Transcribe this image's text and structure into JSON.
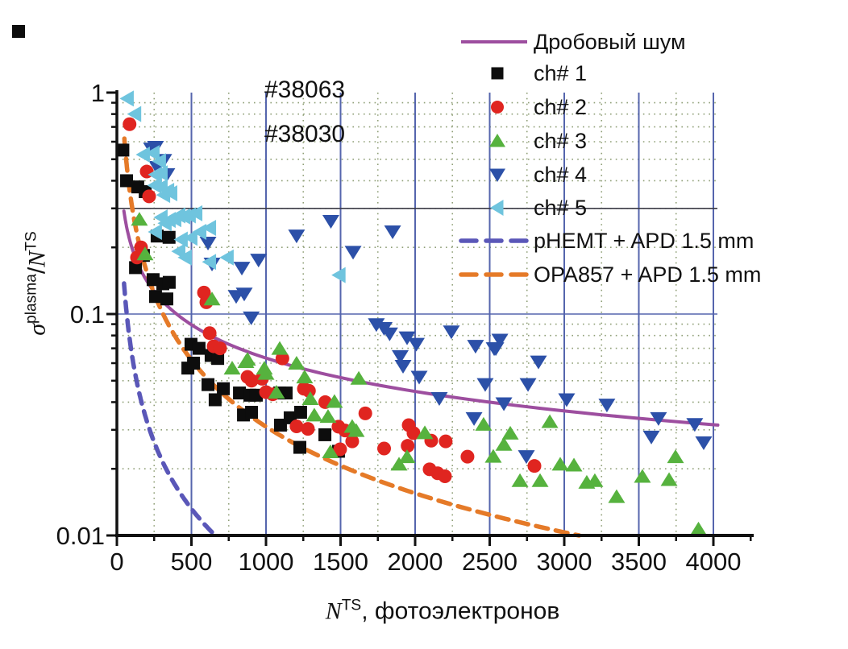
{
  "annotations": [
    "#38063",
    "#38030"
  ],
  "legend": {
    "items": [
      {
        "label": "Дробовый шум",
        "kind": "line",
        "color": "#9D4E9F"
      },
      {
        "label": "ch# 1",
        "kind": "square",
        "color": "#0d0d0d"
      },
      {
        "label": "ch# 2",
        "kind": "circle",
        "color": "#E02520"
      },
      {
        "label": "ch# 3",
        "kind": "triangle-up",
        "color": "#56B23E"
      },
      {
        "label": "ch# 4",
        "kind": "triangle-down",
        "color": "#2C50A8"
      },
      {
        "label": "ch# 5",
        "kind": "triangle-left",
        "color": "#6FC4DE"
      },
      {
        "label": "pHEMT + APD 1.5 mm",
        "kind": "dashed-line",
        "color": "#5A57B8"
      },
      {
        "label": "OPA857 + APD 1.5 mm",
        "kind": "dashed-line",
        "color": "#E57A28"
      }
    ]
  },
  "axes": {
    "x": {
      "title_n": "N",
      "title_sup": "TS",
      "title_rest": ", фотоэлектронов",
      "tick_labels": [
        "0",
        "500",
        "1000",
        "1500",
        "2000",
        "2500",
        "3000",
        "3500",
        "4000"
      ],
      "tick_values": [
        0,
        500,
        1000,
        1500,
        2000,
        2500,
        3000,
        3500,
        4000
      ],
      "minor_tick_values": [
        250,
        750,
        1250,
        1750,
        2250,
        2750,
        3250,
        3750,
        4250
      ],
      "range": [
        0,
        4270
      ],
      "scale": "linear"
    },
    "y": {
      "title_sigma": "σ",
      "title_sup1": "plasma",
      "title_slash": "/",
      "title_n": "N",
      "title_sup2": "TS",
      "tick_labels": [
        "1",
        "0.1",
        "0.01"
      ],
      "tick_values": [
        1,
        0.1,
        0.01
      ],
      "minor_tick_values": [
        0.9,
        0.8,
        0.7,
        0.6,
        0.5,
        0.4,
        0.3,
        0.2,
        0.09,
        0.08,
        0.07,
        0.06,
        0.05,
        0.04,
        0.03,
        0.02
      ],
      "range": [
        0.01,
        1
      ],
      "scale": "log"
    }
  },
  "colors": {
    "grid_major": "#5565AD",
    "grid_minor": "#8F9F77",
    "ref_line_03": "#3B3B47",
    "axis": "#111111"
  },
  "reference_lines": {
    "horizontal_solid_at": [
      0.3,
      0.1
    ]
  },
  "chart_data": {
    "type": "scatter",
    "x_axis": "N^TS, фотоэлектронов (0–4000, linear)",
    "y_axis": "σ^plasma/N^TS (0.01–1, log)",
    "grid": "major blue solid every 500 (x) and per decade (y); green dotted minors",
    "legend_position": "top-right, transparent",
    "series": [
      {
        "name": "ch# 1",
        "marker": "square",
        "color": "#0d0d0d",
        "points": [
          [
            40,
            0.55
          ],
          [
            65,
            0.4
          ],
          [
            140,
            0.375
          ],
          [
            190,
            0.357
          ],
          [
            270,
            0.225
          ],
          [
            350,
            0.222
          ],
          [
            125,
            0.162
          ],
          [
            178,
            0.184
          ],
          [
            243,
            0.143
          ],
          [
            308,
            0.137
          ],
          [
            351,
            0.139
          ],
          [
            259,
            0.12
          ],
          [
            335,
            0.117
          ],
          [
            476,
            0.057
          ],
          [
            497,
            0.073
          ],
          [
            514,
            0.06
          ],
          [
            551,
            0.07
          ],
          [
            611,
            0.048
          ],
          [
            632,
            0.065
          ],
          [
            659,
            0.041
          ],
          [
            676,
            0.063
          ],
          [
            714,
            0.046
          ],
          [
            822,
            0.044
          ],
          [
            849,
            0.035
          ],
          [
            892,
            0.043
          ],
          [
            903,
            0.036
          ],
          [
            935,
            0.043
          ],
          [
            1092,
            0.044
          ],
          [
            1097,
            0.0315
          ],
          [
            1135,
            0.044
          ],
          [
            1162,
            0.034
          ],
          [
            1227,
            0.025
          ],
          [
            1232,
            0.036
          ],
          [
            1395,
            0.0285
          ],
          [
            1486,
            0.024
          ]
        ]
      },
      {
        "name": "ch# 2",
        "marker": "circle",
        "color": "#E02520",
        "points": [
          [
            85,
            0.72
          ],
          [
            135,
            0.18
          ],
          [
            162,
            0.2
          ],
          [
            200,
            0.44
          ],
          [
            216,
            0.34
          ],
          [
            584,
            0.125
          ],
          [
            600,
            0.113
          ],
          [
            622,
            0.082
          ],
          [
            649,
            0.0715
          ],
          [
            692,
            0.07
          ],
          [
            876,
            0.052
          ],
          [
            903,
            0.05
          ],
          [
            973,
            0.051
          ],
          [
            1000,
            0.0444
          ],
          [
            1045,
            0.0434
          ],
          [
            1110,
            0.063
          ],
          [
            1254,
            0.046
          ],
          [
            1288,
            0.045
          ],
          [
            1205,
            0.0311
          ],
          [
            1281,
            0.0303
          ],
          [
            1397,
            0.04
          ],
          [
            1486,
            0.031
          ],
          [
            1530,
            0.0298
          ],
          [
            1578,
            0.0266
          ],
          [
            1497,
            0.0245
          ],
          [
            1666,
            0.0356
          ],
          [
            1792,
            0.0247
          ],
          [
            1957,
            0.0315
          ],
          [
            1989,
            0.029
          ],
          [
            1950,
            0.0254
          ],
          [
            2097,
            0.0199
          ],
          [
            2108,
            0.0268
          ],
          [
            2151,
            0.0191
          ],
          [
            2200,
            0.0185
          ],
          [
            2205,
            0.0266
          ],
          [
            2351,
            0.0227
          ],
          [
            2800,
            0.0206
          ]
        ]
      },
      {
        "name": "ch# 3",
        "marker": "triangle-up",
        "color": "#56B23E",
        "points": [
          [
            151,
            0.268
          ],
          [
            189,
            0.187
          ],
          [
            638,
            0.117
          ],
          [
            773,
            0.057
          ],
          [
            865,
            0.061
          ],
          [
            876,
            0.0625
          ],
          [
            989,
            0.057
          ],
          [
            1000,
            0.054
          ],
          [
            1070,
            0.0444
          ],
          [
            1092,
            0.07
          ],
          [
            1205,
            0.06
          ],
          [
            1259,
            0.052
          ],
          [
            1297,
            0.0415
          ],
          [
            1324,
            0.035
          ],
          [
            1416,
            0.0345
          ],
          [
            1432,
            0.0239
          ],
          [
            1459,
            0.0403
          ],
          [
            1578,
            0.0311
          ],
          [
            1622,
            0.0513
          ],
          [
            1605,
            0.0298
          ],
          [
            1892,
            0.021
          ],
          [
            1946,
            0.0227
          ],
          [
            2065,
            0.0291
          ],
          [
            2459,
            0.0318
          ],
          [
            2524,
            0.0228
          ],
          [
            2595,
            0.0258
          ],
          [
            2638,
            0.029
          ],
          [
            2703,
            0.0177
          ],
          [
            2838,
            0.0177
          ],
          [
            2903,
            0.0327
          ],
          [
            2973,
            0.021
          ],
          [
            3065,
            0.0208
          ],
          [
            3151,
            0.0174
          ],
          [
            3205,
            0.0177
          ],
          [
            3351,
            0.015
          ],
          [
            3524,
            0.0185
          ],
          [
            3703,
            0.0179
          ],
          [
            3746,
            0.0227
          ],
          [
            3900,
            0.0107
          ]
        ]
      },
      {
        "name": "ch# 4",
        "marker": "triangle-down",
        "color": "#2C50A8",
        "points": [
          [
            232,
            0.556
          ],
          [
            259,
            0.566
          ],
          [
            270,
            0.459
          ],
          [
            314,
            0.494
          ],
          [
            335,
            0.426
          ],
          [
            611,
            0.209
          ],
          [
            638,
            0.168
          ],
          [
            800,
            0.12
          ],
          [
            838,
            0.161
          ],
          [
            854,
            0.123
          ],
          [
            901,
            0.096
          ],
          [
            950,
            0.175
          ],
          [
            1205,
            0.225
          ],
          [
            1435,
            0.262
          ],
          [
            1584,
            0.19
          ],
          [
            1849,
            0.235
          ],
          [
            1740,
            0.0895
          ],
          [
            1792,
            0.086
          ],
          [
            1829,
            0.0813
          ],
          [
            1900,
            0.0642
          ],
          [
            1919,
            0.058
          ],
          [
            1946,
            0.078
          ],
          [
            2008,
            0.073
          ],
          [
            2027,
            0.0518
          ],
          [
            2162,
            0.0415
          ],
          [
            2243,
            0.083
          ],
          [
            2395,
            0.0337
          ],
          [
            2405,
            0.0715
          ],
          [
            2470,
            0.048
          ],
          [
            2530,
            0.0697
          ],
          [
            2541,
            0.0697
          ],
          [
            2568,
            0.0762
          ],
          [
            2595,
            0.0393
          ],
          [
            2746,
            0.0227
          ],
          [
            2757,
            0.048
          ],
          [
            2827,
            0.0607
          ],
          [
            3016,
            0.041
          ],
          [
            3286,
            0.0388
          ],
          [
            3584,
            0.0278
          ],
          [
            3632,
            0.0337
          ],
          [
            3875,
            0.0317
          ],
          [
            3935,
            0.0262
          ]
        ]
      },
      {
        "name": "ch# 5",
        "marker": "triangle-left",
        "color": "#6FC4DE",
        "points": [
          [
            70,
            0.94
          ],
          [
            120,
            0.8
          ],
          [
            178,
            0.525
          ],
          [
            243,
            0.533
          ],
          [
            254,
            0.381
          ],
          [
            259,
            0.426
          ],
          [
            259,
            0.235
          ],
          [
            286,
            0.49
          ],
          [
            297,
            0.432
          ],
          [
            297,
            0.375
          ],
          [
            297,
            0.273
          ],
          [
            314,
            0.345
          ],
          [
            324,
            0.257
          ],
          [
            341,
            0.36
          ],
          [
            351,
            0.266
          ],
          [
            362,
            0.351
          ],
          [
            389,
            0.268
          ],
          [
            416,
            0.279
          ],
          [
            416,
            0.192
          ],
          [
            432,
            0.217
          ],
          [
            449,
            0.276
          ],
          [
            459,
            0.18
          ],
          [
            486,
            0.279
          ],
          [
            497,
            0.221
          ],
          [
            530,
            0.285
          ],
          [
            557,
            0.235
          ],
          [
            622,
            0.245
          ],
          [
            622,
            0.172
          ],
          [
            740,
            0.18
          ],
          [
            1490,
            0.15
          ]
        ]
      }
    ],
    "curves": [
      {
        "name": "Дробовый шум",
        "model": "coef/sqrt(N)",
        "coef": 2.0,
        "n_start": 47,
        "n_end": 4030,
        "color": "#9D4E9F",
        "dash": null,
        "width": 4
      },
      {
        "name": "pHEMT + APD 1.5 mm",
        "model": "coef/N",
        "coef": 6.6,
        "n_start": 48,
        "n_end": 660,
        "color": "#5A57B8",
        "dash": "13 10",
        "width": 5.5
      },
      {
        "name": "OPA857 + APD 1.5 mm",
        "model": "coef/N",
        "coef": 31,
        "n_start": 50,
        "n_end": 3100,
        "color": "#E57A28",
        "dash": "15 10",
        "width": 5.5
      }
    ]
  }
}
